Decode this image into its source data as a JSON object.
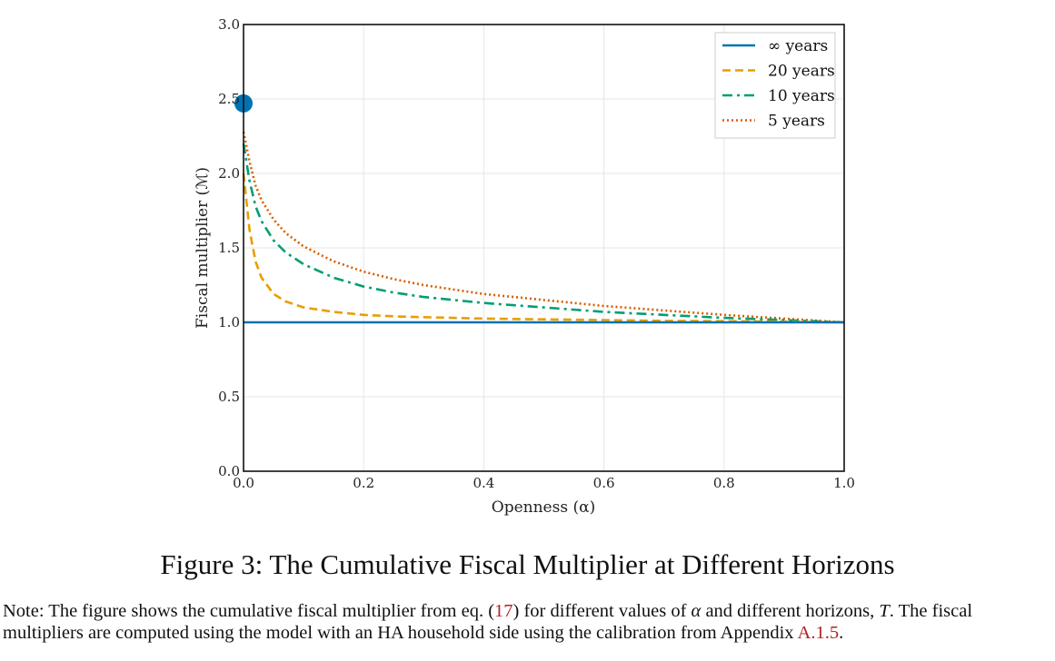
{
  "chart_data": {
    "type": "line",
    "title": "",
    "xlabel": "Openness (α)",
    "ylabel": "Fiscal multiplier (ℳ)",
    "xlim": [
      0.0,
      1.0
    ],
    "ylim": [
      0.0,
      3.0
    ],
    "xticks": [
      "0.0",
      "0.2",
      "0.4",
      "0.6",
      "0.8",
      "1.0"
    ],
    "yticks": [
      "0.0",
      "0.5",
      "1.0",
      "1.5",
      "2.0",
      "2.5",
      "3.0"
    ],
    "grid": true,
    "legend_position": "top-right",
    "x": [
      0.0,
      0.01,
      0.02,
      0.03,
      0.05,
      0.07,
      0.1,
      0.15,
      0.2,
      0.25,
      0.3,
      0.4,
      0.5,
      0.6,
      0.7,
      0.8,
      0.9,
      1.0
    ],
    "series": [
      {
        "name": "∞ years",
        "style": "solid",
        "color": "#0072b2",
        "values": [
          1.0,
          1.0,
          1.0,
          1.0,
          1.0,
          1.0,
          1.0,
          1.0,
          1.0,
          1.0,
          1.0,
          1.0,
          1.0,
          1.0,
          1.0,
          1.0,
          1.0,
          1.0
        ]
      },
      {
        "name": "20 years",
        "style": "dashed",
        "color": "#e69f00",
        "values": [
          2.0,
          1.62,
          1.41,
          1.3,
          1.19,
          1.14,
          1.1,
          1.07,
          1.05,
          1.04,
          1.035,
          1.025,
          1.02,
          1.015,
          1.01,
          1.008,
          1.004,
          1.0
        ]
      },
      {
        "name": "10 years",
        "style": "dashdot",
        "color": "#009e73",
        "values": [
          2.2,
          1.95,
          1.78,
          1.68,
          1.55,
          1.47,
          1.39,
          1.3,
          1.24,
          1.2,
          1.17,
          1.13,
          1.1,
          1.07,
          1.05,
          1.03,
          1.015,
          1.0
        ]
      },
      {
        "name": "5 years",
        "style": "dotted",
        "color": "#d55e00",
        "values": [
          2.28,
          2.08,
          1.92,
          1.82,
          1.69,
          1.6,
          1.51,
          1.41,
          1.34,
          1.29,
          1.25,
          1.19,
          1.15,
          1.11,
          1.08,
          1.05,
          1.025,
          1.0
        ]
      }
    ],
    "marker": {
      "x": 0.0,
      "y": 2.47,
      "color": "#0072b2"
    }
  },
  "caption": {
    "title": "Figure 3: The Cumulative Fiscal Multiplier at Different Horizons",
    "note_part1": "Note: The figure shows the cumulative fiscal multiplier from eq. (",
    "note_ref1": "17",
    "note_part2": ") for different values of ",
    "note_alpha": "α",
    "note_part3": " and different horizons, ",
    "note_T": "T",
    "note_part4": ". The fiscal multipliers are computed using the model with an HA household side using the calibration from Appendix ",
    "note_ref2": "A.1.5",
    "note_part5": "."
  }
}
